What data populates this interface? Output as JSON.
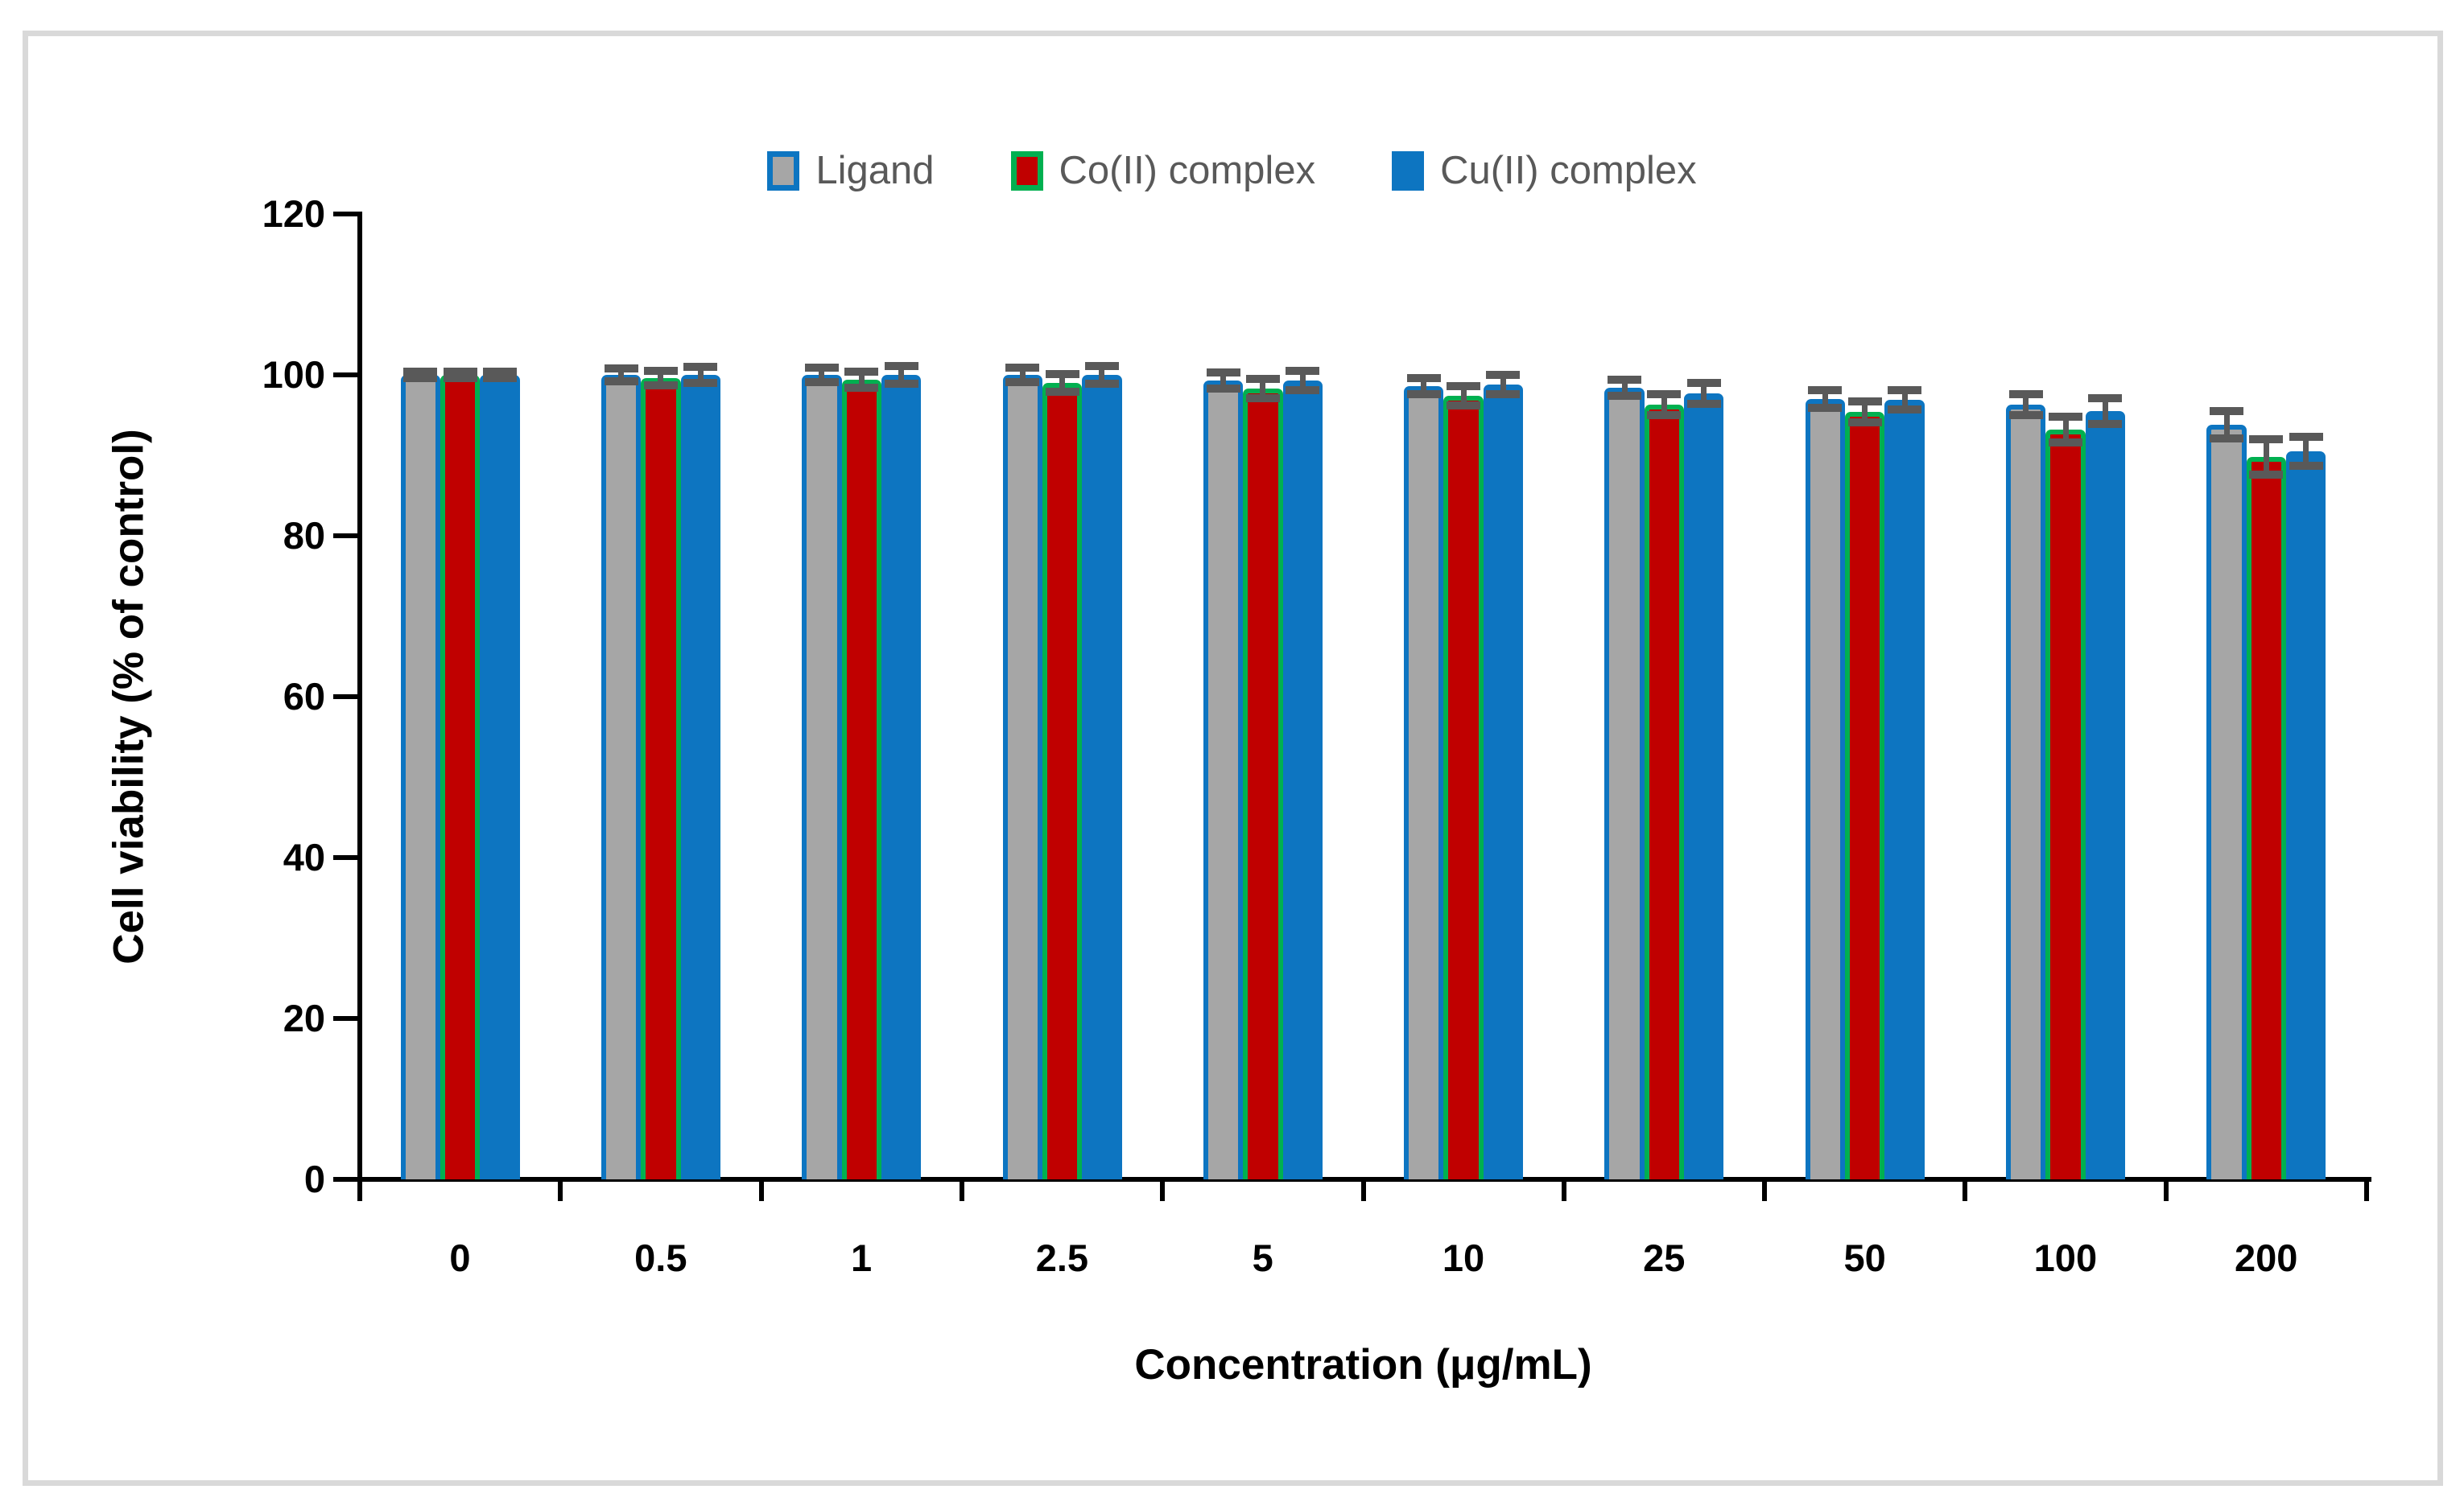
{
  "figure": {
    "frame_color": "#d9d9d9",
    "background": "#ffffff",
    "axis_color": "#000000",
    "tick_label_color": "#000000",
    "legend_text_color": "#595959"
  },
  "chart_data": {
    "type": "bar",
    "title": "",
    "xlabel": "Concentration (μg/mL)",
    "ylabel": "Cell viability (% of control)",
    "categories": [
      "0",
      "0.5",
      "1",
      "2.5",
      "5",
      "10",
      "25",
      "50",
      "100",
      "200"
    ],
    "y_ticks": [
      0,
      20,
      40,
      60,
      80,
      100,
      120
    ],
    "ylim": [
      0,
      120
    ],
    "grid": false,
    "legend_position": "top-center",
    "error_bar_color": "#595959",
    "series": [
      {
        "name": "Ligand",
        "fill": "#a6a6a6",
        "border": "#0d75c1",
        "values": [
          100,
          100,
          100,
          100,
          99.3,
          98.6,
          98.4,
          97.0,
          96.3,
          93.8
        ],
        "errors": [
          0.4,
          0.8,
          0.9,
          0.9,
          1.0,
          1.0,
          1.0,
          1.1,
          1.3,
          1.7
        ]
      },
      {
        "name": "Co(II) complex",
        "fill": "#c00000",
        "border": "#00b050",
        "values": [
          100,
          99.6,
          99.4,
          99.0,
          98.3,
          97.4,
          96.3,
          95.4,
          93.2,
          89.8
        ],
        "errors": [
          0.4,
          0.9,
          1.0,
          1.1,
          1.2,
          1.2,
          1.3,
          1.3,
          1.6,
          2.2
        ]
      },
      {
        "name": "Cu(II) complex",
        "fill": "#0d75c1",
        "border": "#0d75c1",
        "values": [
          100,
          100,
          100,
          100,
          99.3,
          98.8,
          97.7,
          96.9,
          95.5,
          90.5
        ],
        "errors": [
          0.4,
          1.0,
          1.1,
          1.1,
          1.2,
          1.2,
          1.3,
          1.2,
          1.6,
          1.8
        ]
      }
    ]
  }
}
